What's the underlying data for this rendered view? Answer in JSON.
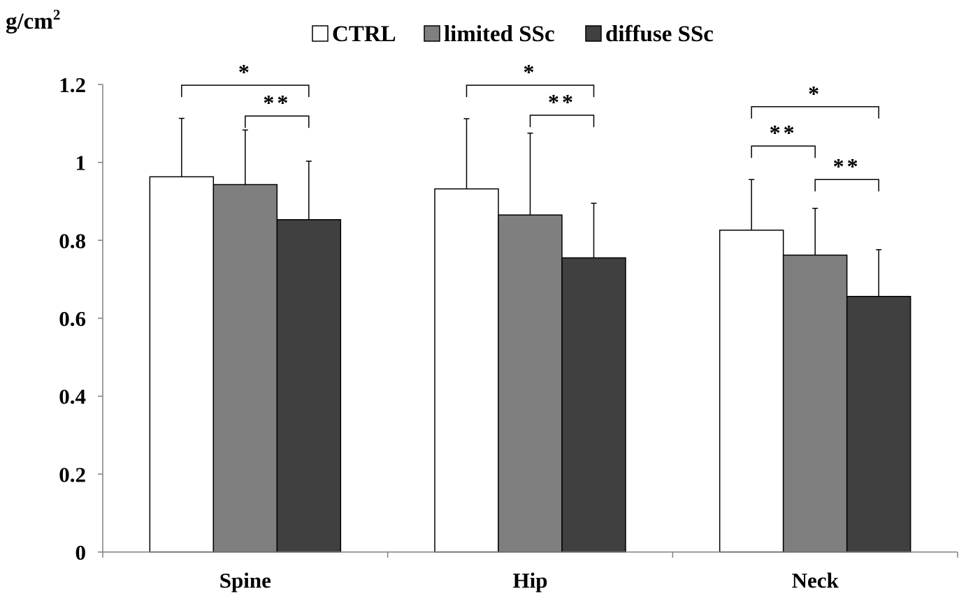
{
  "chart_data": {
    "type": "bar",
    "ylabel": "g/cm",
    "ylabel_sup": "2",
    "ylim": [
      0,
      1.2
    ],
    "yticks": [
      {
        "value": 0,
        "label": "0"
      },
      {
        "value": 0.2,
        "label": "0.2"
      },
      {
        "value": 0.4,
        "label": "0.4"
      },
      {
        "value": 0.6,
        "label": "0.6"
      },
      {
        "value": 0.8,
        "label": "0.8"
      },
      {
        "value": 1.0,
        "label": "1"
      },
      {
        "value": 1.2,
        "label": "1.2"
      }
    ],
    "grid": false,
    "legend_position": "top",
    "categories": [
      "Spine",
      "Hip",
      "Neck"
    ],
    "series": [
      {
        "name": "CTRL",
        "color": "#ffffff",
        "values": [
          0.963,
          0.932,
          0.826
        ],
        "errors": [
          0.15,
          0.18,
          0.13
        ]
      },
      {
        "name": "limited SSc",
        "color": "#7f7f7f",
        "values": [
          0.943,
          0.865,
          0.762
        ],
        "errors": [
          0.14,
          0.21,
          0.12
        ]
      },
      {
        "name": "diffuse SSc",
        "color": "#404040",
        "values": [
          0.853,
          0.755,
          0.656
        ],
        "errors": [
          0.15,
          0.14,
          0.12
        ]
      }
    ],
    "significance": [
      {
        "category": 0,
        "from_series": 0,
        "to_series": 2,
        "label": "*",
        "level": 1.198
      },
      {
        "category": 0,
        "from_series": 1,
        "to_series": 2,
        "label": "**",
        "level": 1.119
      },
      {
        "category": 1,
        "from_series": 0,
        "to_series": 2,
        "label": "*",
        "level": 1.198
      },
      {
        "category": 1,
        "from_series": 1,
        "to_series": 2,
        "label": "**",
        "level": 1.121
      },
      {
        "category": 2,
        "from_series": 0,
        "to_series": 2,
        "label": "*",
        "level": 1.143
      },
      {
        "category": 2,
        "from_series": 0,
        "to_series": 1,
        "label": "**",
        "level": 1.042
      },
      {
        "category": 2,
        "from_series": 1,
        "to_series": 2,
        "label": "**",
        "level": 0.956
      }
    ]
  }
}
